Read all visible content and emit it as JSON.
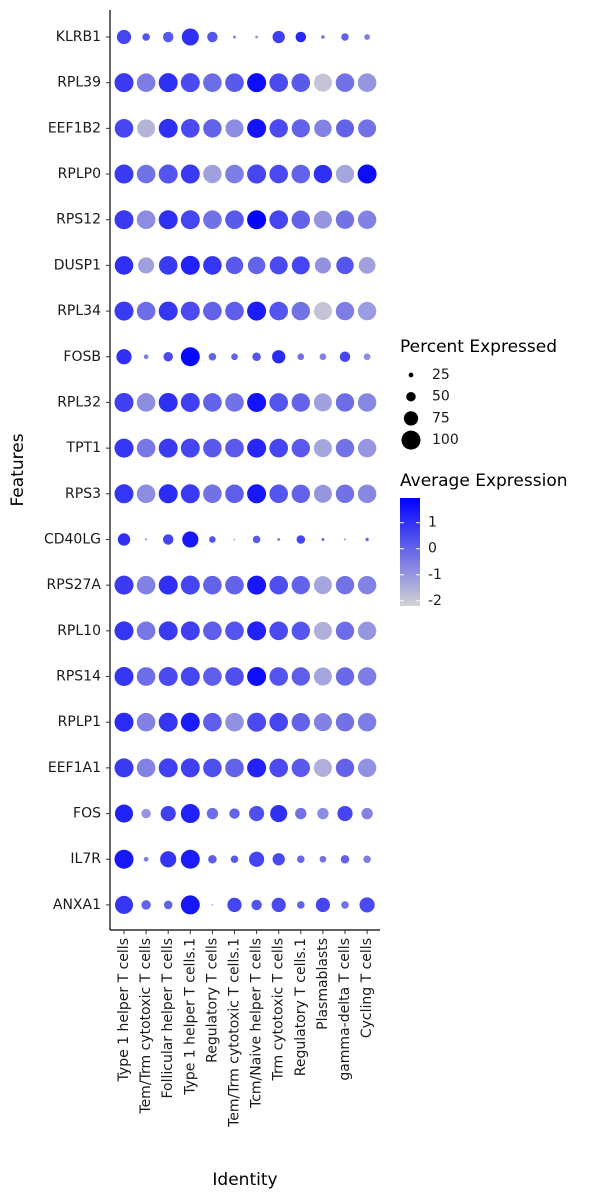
{
  "chart_data": {
    "type": "dotplot",
    "x_label": "Identity",
    "y_label": "Features",
    "identities": [
      "Type 1 helper T cells",
      "Tem/Trm cytotoxic T cells",
      "Follicular helper T cells",
      "Type 1 helper T cells.1",
      "Regulatory T cells",
      "Tem/Trm cytotoxic T cells.1",
      "Tcm/Naive helper T cells",
      "Trm cytotoxic T cells",
      "Regulatory T cells.1",
      "Plasmablasts",
      "gamma-delta T cells",
      "Cycling T cells"
    ],
    "features": [
      "KLRB1",
      "RPL39",
      "EEF1B2",
      "RPLP0",
      "RPS12",
      "DUSP1",
      "RPL34",
      "FOSB",
      "RPL32",
      "TPT1",
      "RPS3",
      "CD40LG",
      "RPS27A",
      "RPL10",
      "RPS14",
      "RPLP1",
      "EEF1A1",
      "FOS",
      "IL7R",
      "ANXA1"
    ],
    "percent_expressed": [
      [
        75,
        40,
        55,
        90,
        55,
        15,
        15,
        65,
        55,
        20,
        40,
        30
      ],
      [
        100,
        98,
        100,
        100,
        98,
        98,
        100,
        98,
        98,
        95,
        98,
        98
      ],
      [
        98,
        95,
        100,
        98,
        97,
        95,
        100,
        97,
        96,
        92,
        95,
        95
      ],
      [
        100,
        98,
        100,
        100,
        97,
        98,
        100,
        98,
        98,
        97,
        96,
        100
      ],
      [
        100,
        98,
        100,
        100,
        98,
        98,
        100,
        98,
        97,
        95,
        97,
        97
      ],
      [
        98,
        85,
        98,
        100,
        98,
        92,
        92,
        95,
        95,
        85,
        92,
        88
      ],
      [
        100,
        98,
        100,
        100,
        98,
        98,
        100,
        98,
        97,
        95,
        97,
        97
      ],
      [
        80,
        25,
        50,
        100,
        40,
        35,
        45,
        70,
        35,
        35,
        55,
        35
      ],
      [
        100,
        98,
        100,
        100,
        98,
        98,
        100,
        98,
        97,
        95,
        97,
        97
      ],
      [
        100,
        98,
        100,
        100,
        98,
        98,
        100,
        98,
        97,
        95,
        97,
        97
      ],
      [
        100,
        98,
        100,
        100,
        98,
        98,
        100,
        98,
        97,
        95,
        97,
        97
      ],
      [
        65,
        10,
        55,
        85,
        35,
        8,
        40,
        15,
        45,
        15,
        10,
        18
      ],
      [
        100,
        98,
        100,
        100,
        98,
        98,
        100,
        98,
        97,
        95,
        97,
        97
      ],
      [
        100,
        98,
        100,
        100,
        98,
        98,
        100,
        98,
        97,
        95,
        97,
        97
      ],
      [
        100,
        98,
        100,
        100,
        98,
        98,
        100,
        98,
        97,
        95,
        97,
        97
      ],
      [
        100,
        98,
        100,
        100,
        98,
        98,
        100,
        98,
        97,
        95,
        97,
        97
      ],
      [
        100,
        98,
        100,
        100,
        98,
        98,
        100,
        98,
        97,
        95,
        97,
        97
      ],
      [
        95,
        50,
        80,
        100,
        60,
        55,
        80,
        90,
        60,
        60,
        80,
        60
      ],
      [
        100,
        25,
        85,
        100,
        45,
        40,
        80,
        65,
        40,
        35,
        45,
        40
      ],
      [
        95,
        50,
        45,
        100,
        8,
        75,
        55,
        75,
        40,
        75,
        40,
        80
      ]
    ],
    "average_expression": [
      [
        0.6,
        0.3,
        0.2,
        1.0,
        0.3,
        -0.5,
        -1.0,
        0.7,
        1.2,
        -0.5,
        0,
        -0.5
      ],
      [
        0.8,
        -0.5,
        1.0,
        0.5,
        -0.2,
        0.2,
        1.7,
        0.5,
        0.2,
        -1.9,
        -0.3,
        -1.0
      ],
      [
        0.6,
        -1.6,
        1.0,
        0.5,
        0,
        -0.8,
        1.6,
        0.5,
        0,
        -0.6,
        0,
        -0.3
      ],
      [
        0.8,
        -0.3,
        0.3,
        0.8,
        -1.2,
        -0.5,
        0.6,
        0.5,
        0,
        1.0,
        -1.3,
        1.7
      ],
      [
        0.8,
        -0.8,
        1.0,
        0.6,
        -0.3,
        0.2,
        1.9,
        0.6,
        0,
        -1.0,
        -0.3,
        -0.6
      ],
      [
        1.0,
        -1.2,
        0.8,
        1.3,
        0.9,
        0.2,
        0,
        0.5,
        0.6,
        -0.9,
        0.3,
        -1.2
      ],
      [
        0.8,
        -0.2,
        0.9,
        0.5,
        0,
        0.1,
        1.4,
        0.3,
        -0.3,
        -1.9,
        -0.5,
        -1.1
      ],
      [
        1.0,
        -0.5,
        0.5,
        1.8,
        0,
        0,
        0.3,
        1.1,
        -0.3,
        -0.6,
        0.6,
        -0.8
      ],
      [
        0.7,
        -0.8,
        1.0,
        0.7,
        0,
        -0.3,
        1.6,
        0.3,
        0,
        -1.2,
        -0.2,
        -0.7
      ],
      [
        0.9,
        -0.4,
        0.8,
        0.6,
        0.2,
        0.2,
        1.2,
        0.6,
        0.2,
        -1.3,
        -0.3,
        -1.0
      ],
      [
        0.9,
        -0.8,
        1.1,
        0.8,
        -0.3,
        0.1,
        1.5,
        0.3,
        0,
        -1.0,
        -0.3,
        -0.7
      ],
      [
        1.0,
        -0.3,
        0.6,
        1.5,
        0.3,
        -0.5,
        0.2,
        -0.5,
        0.6,
        0,
        -0.7,
        -0.2
      ],
      [
        0.8,
        -0.6,
        1.0,
        0.6,
        0,
        0,
        1.5,
        0.4,
        0,
        -1.3,
        -0.3,
        -0.6
      ],
      [
        0.9,
        -0.4,
        0.8,
        0.7,
        0.1,
        0.3,
        1.3,
        0.5,
        0.3,
        -1.5,
        -0.2,
        -1.0
      ],
      [
        0.9,
        -0.2,
        0.5,
        0.6,
        0.1,
        0.4,
        1.7,
        0.3,
        0.1,
        -1.3,
        -0.1,
        -0.5
      ],
      [
        1.1,
        -0.6,
        0.9,
        1.4,
        0.1,
        -0.9,
        0.5,
        0.6,
        0,
        -0.6,
        -0.3,
        -0.5
      ],
      [
        0.8,
        -0.6,
        0.7,
        0.7,
        0.4,
        0,
        1.3,
        0.5,
        0.2,
        -1.5,
        0,
        -0.9
      ],
      [
        1.3,
        -1.0,
        0.7,
        1.3,
        -0.2,
        0,
        0.4,
        1.0,
        -0.3,
        -0.8,
        0.6,
        -0.6
      ],
      [
        1.5,
        -0.5,
        0.9,
        1.4,
        0.1,
        0.2,
        0.6,
        0.5,
        -0.1,
        -0.3,
        0,
        -0.5
      ],
      [
        0.9,
        0,
        0,
        1.5,
        -1.0,
        0.6,
        0.3,
        0.5,
        0,
        0.6,
        -0.3,
        0.5
      ]
    ],
    "size_legend_title": "Percent Expressed",
    "size_ticks": [
      25,
      50,
      75,
      100
    ],
    "color_legend_title": "Average Expression",
    "color_lim": [
      -2.2,
      1.95
    ],
    "color_ticks": [
      1,
      0,
      -1,
      -2
    ],
    "color_low": "#d3d3d3",
    "color_high": "#0000ff"
  }
}
